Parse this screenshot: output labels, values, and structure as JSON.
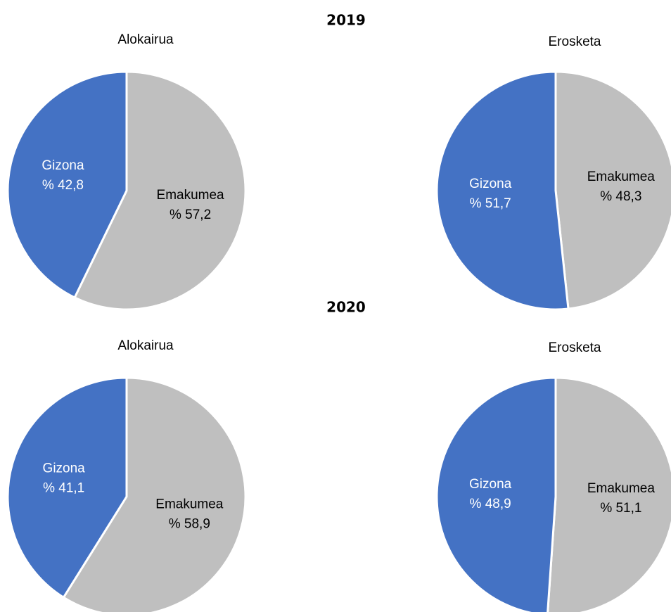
{
  "headings": [
    "2019",
    "2020"
  ],
  "chart_data": [
    {
      "type": "pie",
      "title": "Alokairua",
      "categories": [
        "Emakumea",
        "Gizona"
      ],
      "values": [
        57.2,
        42.8
      ],
      "value_labels": [
        "% 57,2",
        "% 42,8"
      ],
      "colors": [
        "#bfbfbf",
        "#4472c4"
      ]
    },
    {
      "type": "pie",
      "title": "Erosketa",
      "categories": [
        "Emakumea",
        "Gizona"
      ],
      "values": [
        48.3,
        51.7
      ],
      "value_labels": [
        "% 48,3",
        "% 51,7"
      ],
      "colors": [
        "#bfbfbf",
        "#4472c4"
      ]
    },
    {
      "type": "pie",
      "title": "Alokairua",
      "categories": [
        "Emakumea",
        "Gizona"
      ],
      "values": [
        58.9,
        41.1
      ],
      "value_labels": [
        "% 58,9",
        "% 41,1"
      ],
      "colors": [
        "#bfbfbf",
        "#4472c4"
      ]
    },
    {
      "type": "pie",
      "title": "Erosketa",
      "categories": [
        "Emakumea",
        "Gizona"
      ],
      "values": [
        51.1,
        48.9
      ],
      "value_labels": [
        "% 51,1",
        "% 48,9"
      ],
      "colors": [
        "#bfbfbf",
        "#4472c4"
      ]
    }
  ]
}
